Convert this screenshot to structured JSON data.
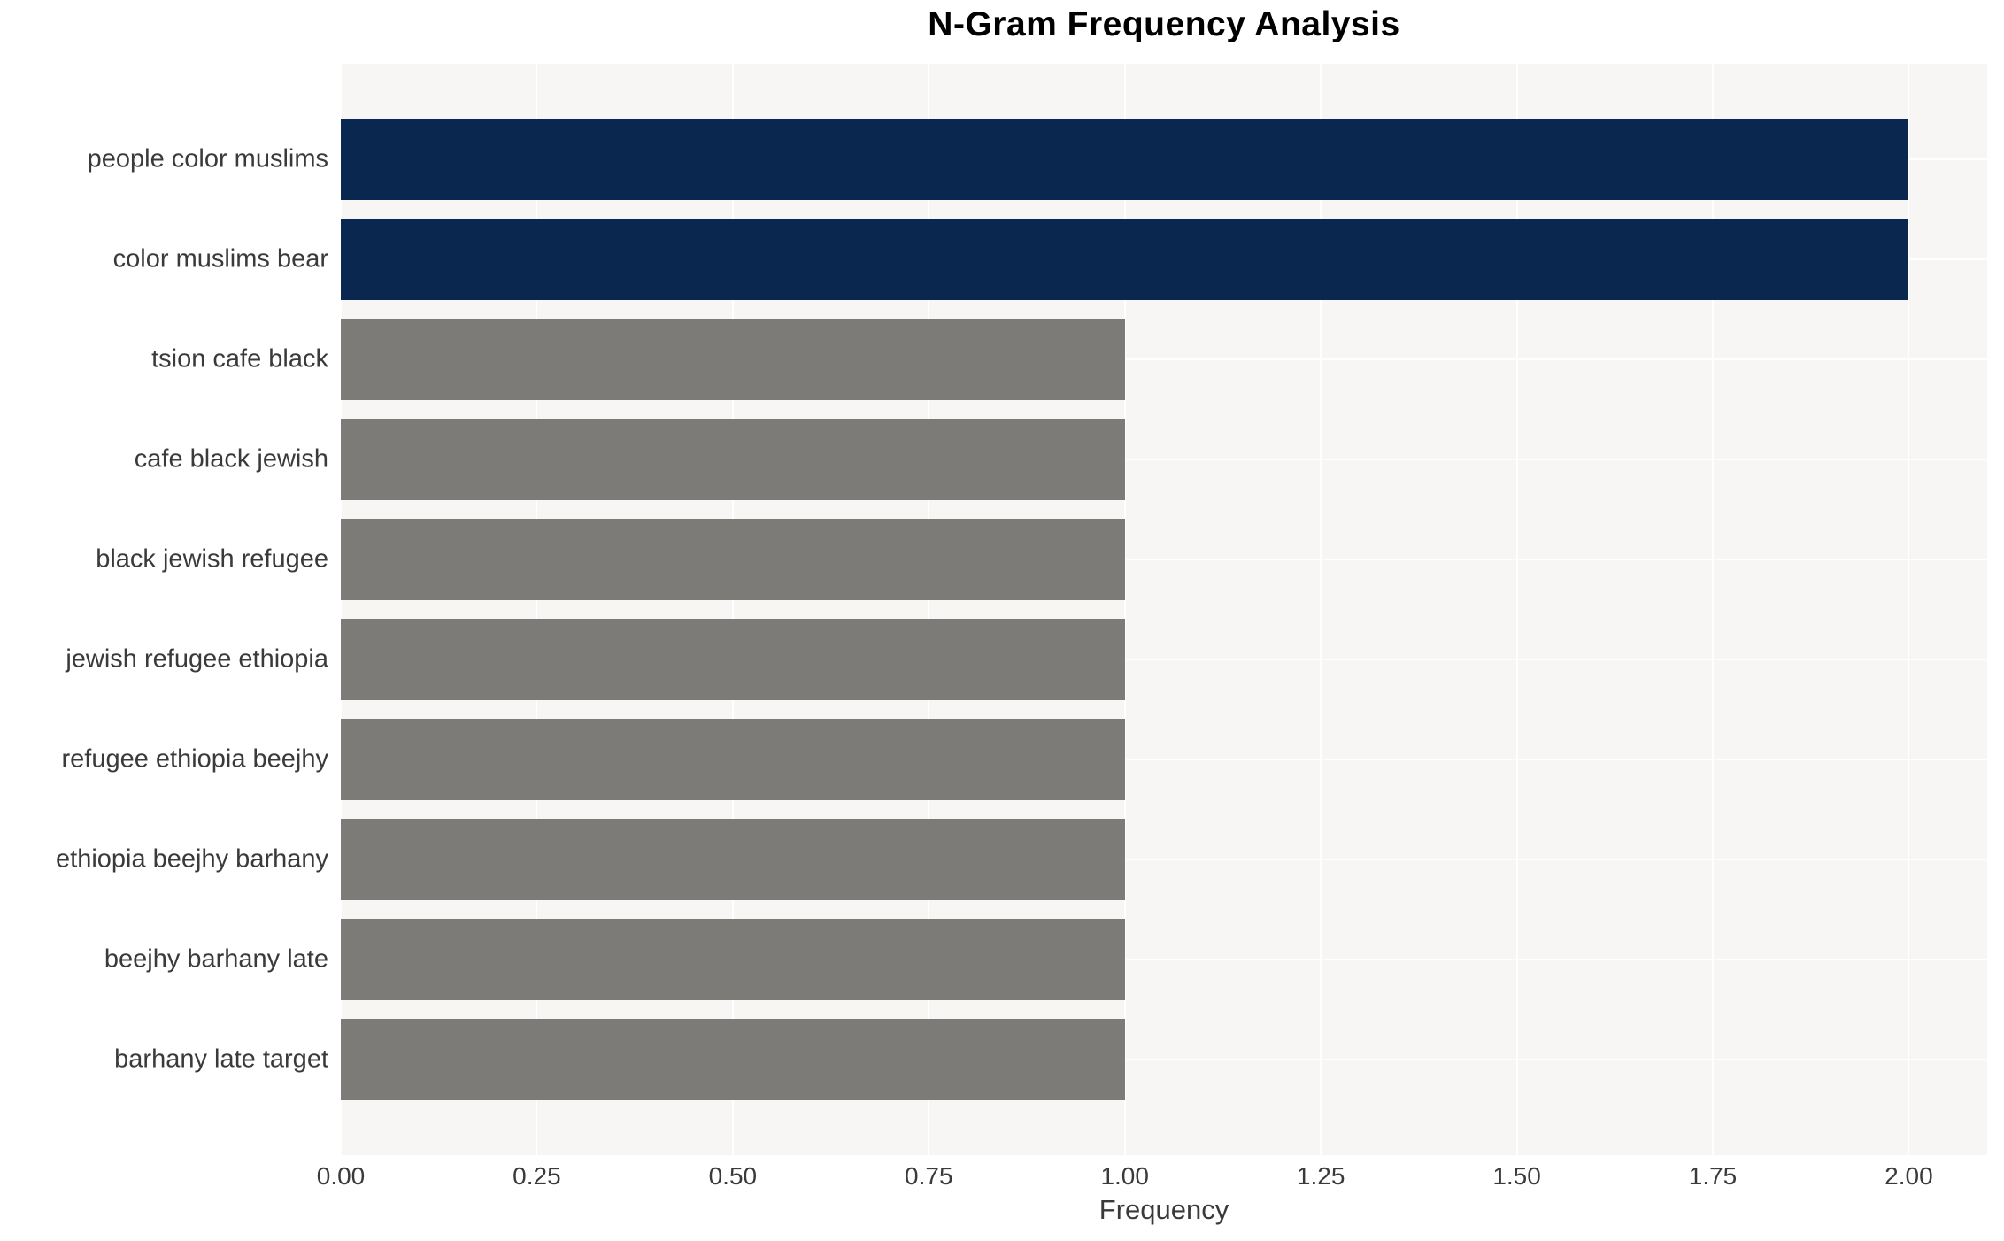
{
  "title": "N-Gram Frequency Analysis",
  "chart_data": {
    "type": "bar",
    "orientation": "horizontal",
    "title": "N-Gram Frequency Analysis",
    "xlabel": "Frequency",
    "ylabel": "",
    "categories": [
      "people color muslims",
      "color muslims bear",
      "tsion cafe black",
      "cafe black jewish",
      "black jewish refugee",
      "jewish refugee ethiopia",
      "refugee ethiopia beejhy",
      "ethiopia beejhy barhany",
      "beejhy barhany late",
      "barhany late target"
    ],
    "values": [
      2,
      2,
      1,
      1,
      1,
      1,
      1,
      1,
      1,
      1
    ],
    "bar_colors": [
      "#0a2750",
      "#0a2750",
      "#7c7b77",
      "#7c7b77",
      "#7c7b77",
      "#7c7b77",
      "#7c7b77",
      "#7c7b77",
      "#7c7b77",
      "#7c7b77"
    ],
    "xlim": [
      0,
      2.1
    ],
    "xticks": [
      "0.00",
      "0.25",
      "0.50",
      "0.75",
      "1.00",
      "1.25",
      "1.50",
      "1.75",
      "2.00"
    ],
    "grid": true,
    "legend": "none",
    "plot_bg_color": "#f7f6f5",
    "grid_color": "#ffffff",
    "text_color": "#3a3a3a",
    "title_color": "#000000"
  }
}
